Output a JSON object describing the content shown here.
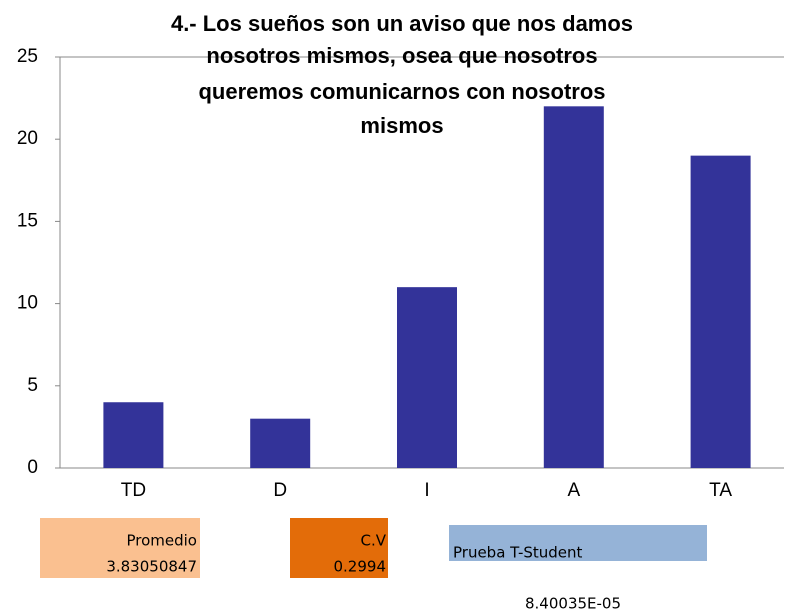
{
  "chart_data": {
    "type": "bar",
    "title": [
      "4.- Los sueños son un aviso que nos damos",
      "nosotros mismos, osea que nosotros",
      "queremos comunicarnos con  nosotros",
      "mismos"
    ],
    "categories": [
      "TD",
      "D",
      "I",
      "A",
      "TA"
    ],
    "values": [
      4,
      3,
      11,
      22,
      19
    ],
    "color": "#333399",
    "ylim": [
      0,
      25
    ],
    "yticks": [
      0,
      5,
      10,
      15,
      20,
      25
    ],
    "grid": false
  },
  "stats": {
    "mean": {
      "label": "Promedio",
      "value": "3.83050847"
    },
    "cv": {
      "label": "C.V",
      "value": "0.2994"
    },
    "ttest": {
      "label": "Prueba T-Student",
      "value": "8.40035E-05"
    }
  }
}
